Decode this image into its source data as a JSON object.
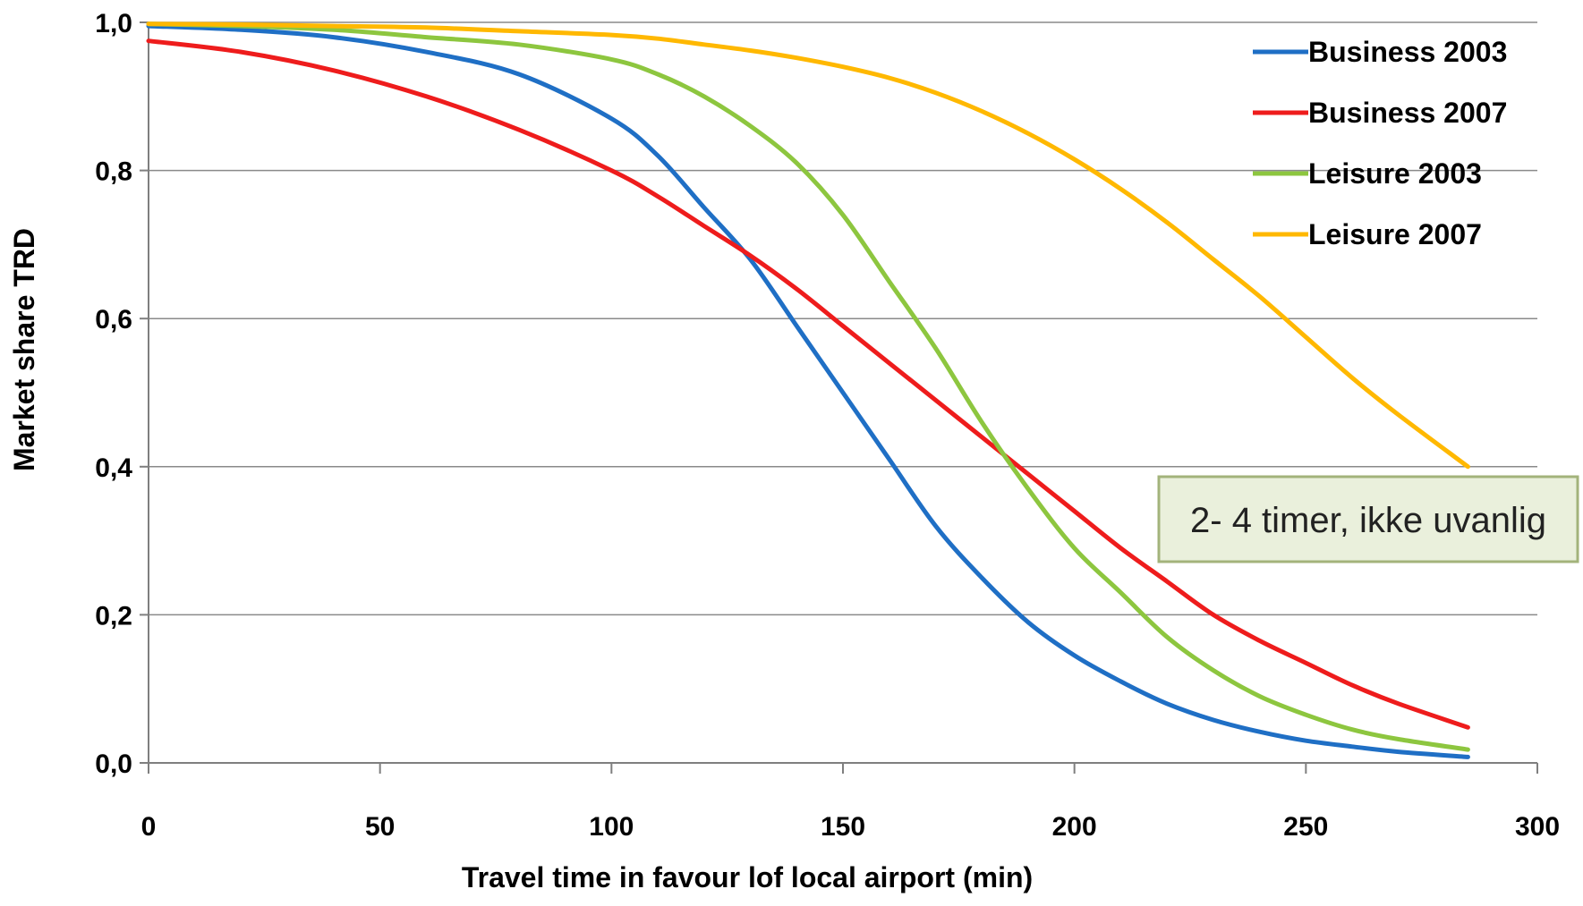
{
  "chart_data": {
    "type": "line",
    "title": "",
    "xlabel": "Travel time in favour lof local airport (min)",
    "ylabel": "Market share TRD",
    "xlim": [
      0,
      300
    ],
    "ylim": [
      0,
      1
    ],
    "xticks": [
      0,
      50,
      100,
      150,
      200,
      250,
      300
    ],
    "xtick_labels": [
      "0",
      "50",
      "100",
      "150",
      "200",
      "250",
      "300"
    ],
    "yticks": [
      0,
      0.2,
      0.4,
      0.6,
      0.8,
      1.0
    ],
    "ytick_labels": [
      "0,0",
      "0,2",
      "0,4",
      "0,6",
      "0,8",
      "1,0"
    ],
    "grid": "horizontal",
    "legend_position": "top-right",
    "x": [
      0,
      20,
      40,
      60,
      80,
      100,
      110,
      120,
      130,
      140,
      150,
      160,
      170,
      180,
      190,
      200,
      210,
      220,
      230,
      240,
      250,
      260,
      270,
      285
    ],
    "series": [
      {
        "name": "Business 2003",
        "color": "#1f6fc5",
        "values": [
          0.995,
          0.99,
          0.98,
          0.96,
          0.93,
          0.87,
          0.82,
          0.75,
          0.68,
          0.59,
          0.5,
          0.41,
          0.32,
          0.25,
          0.19,
          0.145,
          0.11,
          0.08,
          0.058,
          0.042,
          0.03,
          0.022,
          0.015,
          0.008
        ]
      },
      {
        "name": "Business 2007",
        "color": "#ee1c1c",
        "values": [
          0.975,
          0.96,
          0.935,
          0.9,
          0.855,
          0.8,
          0.765,
          0.725,
          0.685,
          0.64,
          0.59,
          0.54,
          0.49,
          0.44,
          0.39,
          0.34,
          0.29,
          0.245,
          0.2,
          0.165,
          0.135,
          0.105,
          0.08,
          0.048
        ]
      },
      {
        "name": "Leisure 2003",
        "color": "#8dc63f",
        "values": [
          0.998,
          0.995,
          0.99,
          0.98,
          0.97,
          0.95,
          0.93,
          0.9,
          0.86,
          0.81,
          0.74,
          0.65,
          0.56,
          0.46,
          0.37,
          0.29,
          0.23,
          0.17,
          0.125,
          0.09,
          0.065,
          0.045,
          0.032,
          0.018
        ]
      },
      {
        "name": "Leisure 2007",
        "color": "#ffb800",
        "values": [
          0.998,
          0.997,
          0.995,
          0.993,
          0.988,
          0.983,
          0.978,
          0.97,
          0.962,
          0.952,
          0.94,
          0.925,
          0.905,
          0.88,
          0.85,
          0.815,
          0.775,
          0.73,
          0.68,
          0.63,
          0.575,
          0.52,
          0.47,
          0.4
        ]
      }
    ],
    "annotation": {
      "text": "2- 4 timer,  ikke uvanlig",
      "fill": "#eaf0dc",
      "border": "#a3b37b"
    }
  }
}
